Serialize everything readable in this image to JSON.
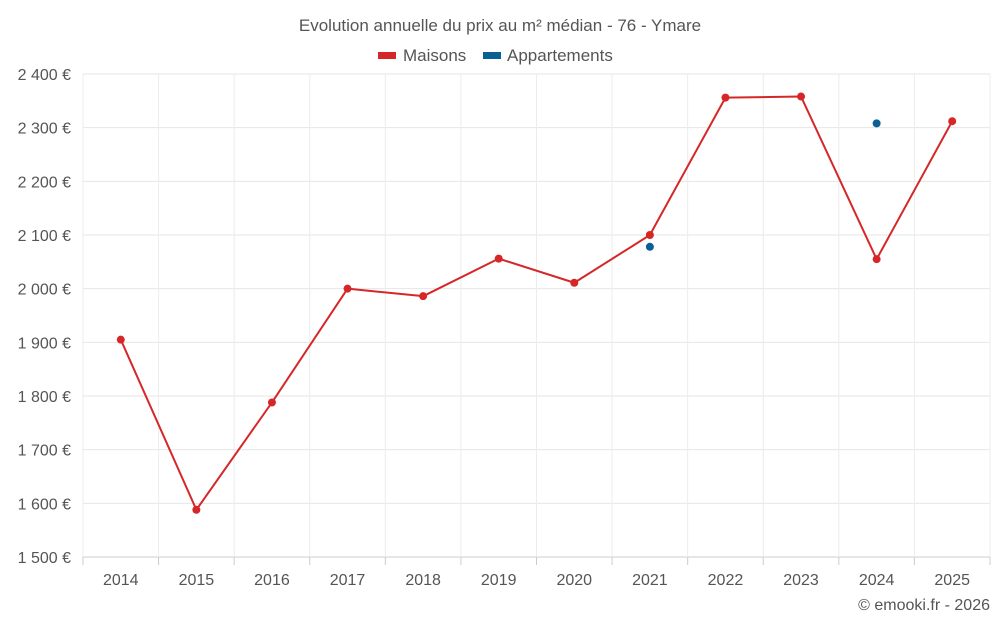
{
  "chart_data": {
    "type": "line",
    "title": "Evolution annuelle du prix au m² médian - 76 - Ymare",
    "categories": [
      "2014",
      "2015",
      "2016",
      "2017",
      "2018",
      "2019",
      "2020",
      "2021",
      "2022",
      "2023",
      "2024",
      "2025"
    ],
    "series": [
      {
        "name": "Maisons",
        "color": "#d62728",
        "values": [
          1905,
          1588,
          1788,
          2000,
          1986,
          2056,
          2011,
          2100,
          2356,
          2358,
          2055,
          2312
        ]
      },
      {
        "name": "Appartements",
        "color": "#0a5f95",
        "values": [
          null,
          null,
          null,
          null,
          null,
          null,
          null,
          2078,
          null,
          null,
          2308,
          null
        ]
      }
    ],
    "y_ticks": [
      "2 400 €",
      "2 300 €",
      "2 200 €",
      "2 100 €",
      "2 000 €",
      "1 900 €",
      "1 800 €",
      "1 700 €",
      "1 600 €",
      "1 500 €"
    ],
    "ylim": [
      1500,
      2400
    ],
    "xlabel": "",
    "ylabel": "",
    "grid": true,
    "legend_position": "top-center"
  },
  "credit": "© emooki.fr - 2026"
}
